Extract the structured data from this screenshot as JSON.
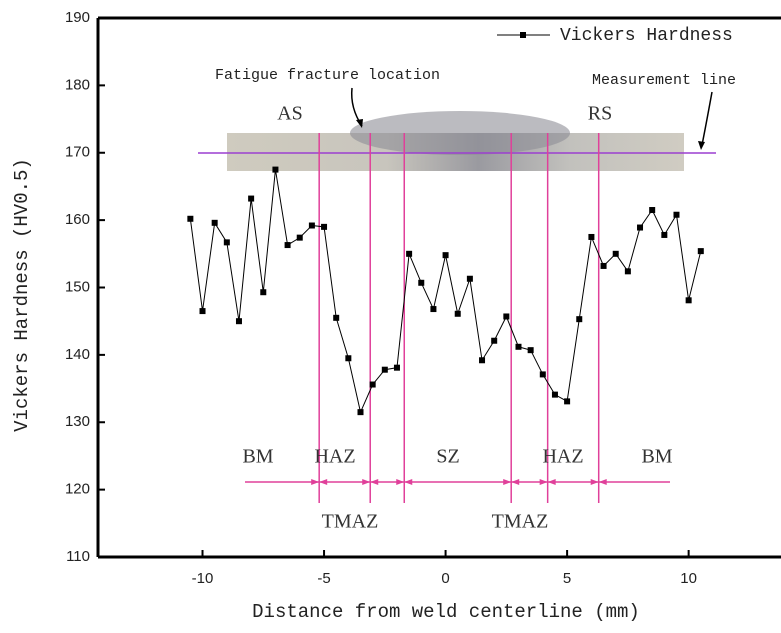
{
  "chart_data": {
    "type": "line",
    "x_label": "Distance from weld centerline (mm)",
    "y_label": "Vickers Hardness (HV0.5)",
    "x": [
      -10.5,
      -10.0,
      -9.5,
      -9.0,
      -8.5,
      -8.0,
      -7.5,
      -7.0,
      -6.5,
      -6.0,
      -5.5,
      -5.0,
      -4.5,
      -4.0,
      -3.5,
      -3.0,
      -2.5,
      -2.0,
      -1.5,
      -1.0,
      -0.5,
      0,
      0.5,
      1.0,
      1.5,
      2.0,
      2.5,
      3.0,
      3.5,
      4.0,
      4.5,
      5.0,
      5.5,
      6.0,
      6.5,
      7.0,
      7.5,
      8.0,
      8.5,
      9.0,
      9.5,
      10.0,
      10.5
    ],
    "series": [
      {
        "name": "Vickers Hardness",
        "color": "#000000",
        "values": [
          160.2,
          146.5,
          159.6,
          156.7,
          145,
          163.2,
          149.3,
          167.5,
          156.3,
          157.4,
          159.2,
          159,
          145.5,
          139.5,
          131.5,
          135.6,
          137.8,
          138.1,
          155,
          150.7,
          146.8,
          154.8,
          146.1,
          151.3,
          139.2,
          142.1,
          145.7,
          141.2,
          140.7,
          137.1,
          134.1,
          133.1,
          145.3,
          157.5,
          153.2,
          155,
          152.4,
          158.9,
          161.5,
          157.8,
          160.8,
          148.1,
          155.4
        ]
      }
    ],
    "zone_boundaries": [
      -5.2,
      -3.1,
      -1.7,
      2.7,
      4.2,
      6.3
    ],
    "boundary_color": "#e0409a",
    "annotations": [
      "Fatigue fracture location",
      "Measurement line",
      "AS",
      "RS",
      "BM",
      "HAZ",
      "SZ",
      "HAZ",
      "BM",
      "TMAZ",
      "TMAZ"
    ],
    "xlim": [
      -14.3,
      13.8
    ],
    "ylim": [
      110,
      190
    ],
    "xticks": [
      -10,
      -5,
      0,
      5,
      10
    ],
    "yticks": [
      110,
      120,
      130,
      140,
      150,
      160,
      170,
      180,
      190
    ],
    "legend": "upper right",
    "grid": false
  }
}
